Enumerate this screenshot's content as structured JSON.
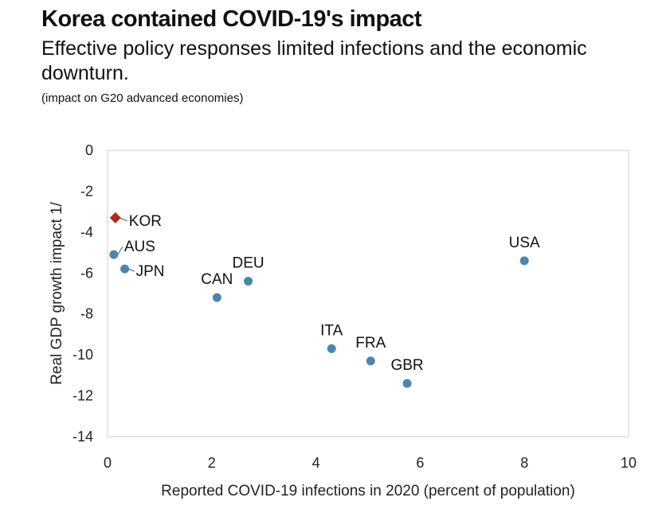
{
  "header": {
    "title": "Korea contained COVID-19's impact",
    "subtitle": "Effective policy responses limited infections and the economic downturn.",
    "note": "(impact on G20 advanced economies)"
  },
  "chart_data": {
    "type": "scatter",
    "xlabel": "Reported COVID-19 infections in 2020 (percent of population)",
    "ylabel": "Real GDP growth impact 1/",
    "xlim": [
      0,
      10
    ],
    "ylim": [
      -14,
      0
    ],
    "xticks": [
      0,
      2,
      4,
      6,
      8,
      10
    ],
    "yticks": [
      0,
      -2,
      -4,
      -6,
      -8,
      -10,
      -12,
      -14
    ],
    "grid": false,
    "colors": {
      "point": "#4a86b0",
      "highlight": "#b5261e",
      "frame": "#cfcfcf"
    },
    "points": [
      {
        "label": "KOR",
        "x": 0.15,
        "y": -3.3,
        "highlight": true
      },
      {
        "label": "AUS",
        "x": 0.12,
        "y": -5.1
      },
      {
        "label": "JPN",
        "x": 0.33,
        "y": -5.8
      },
      {
        "label": "CAN",
        "x": 2.1,
        "y": -7.2
      },
      {
        "label": "DEU",
        "x": 2.7,
        "y": -6.4
      },
      {
        "label": "ITA",
        "x": 4.3,
        "y": -9.7
      },
      {
        "label": "FRA",
        "x": 5.05,
        "y": -10.3
      },
      {
        "label": "GBR",
        "x": 5.75,
        "y": -11.4
      },
      {
        "label": "USA",
        "x": 8.0,
        "y": -5.4
      }
    ]
  }
}
